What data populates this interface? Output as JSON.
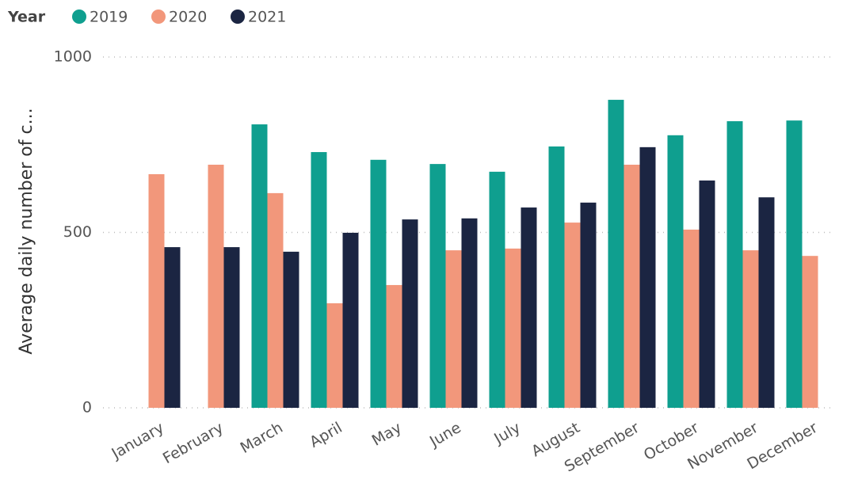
{
  "chart_data": {
    "type": "bar",
    "y_label": "Average daily number of c...",
    "legend_title": "Year",
    "categories": [
      "January",
      "February",
      "March",
      "April",
      "May",
      "June",
      "July",
      "August",
      "September",
      "October",
      "November",
      "December"
    ],
    "series": [
      {
        "name": "2019",
        "color": "#0f9f8f",
        "values": [
          null,
          null,
          808,
          729,
          707,
          695,
          673,
          745,
          878,
          777,
          817,
          819
        ]
      },
      {
        "name": "2020",
        "color": "#f2977b",
        "values": [
          666,
          693,
          612,
          298,
          350,
          449,
          454,
          528,
          693,
          508,
          449,
          433
        ]
      },
      {
        "name": "2021",
        "color": "#1b2542",
        "values": [
          458,
          458,
          445,
          499,
          537,
          540,
          571,
          585,
          743,
          648,
          600,
          null
        ]
      }
    ],
    "ylim": [
      0,
      1000
    ],
    "yticks": [
      0,
      500,
      1000
    ],
    "grid": true,
    "legend": "top-left"
  }
}
